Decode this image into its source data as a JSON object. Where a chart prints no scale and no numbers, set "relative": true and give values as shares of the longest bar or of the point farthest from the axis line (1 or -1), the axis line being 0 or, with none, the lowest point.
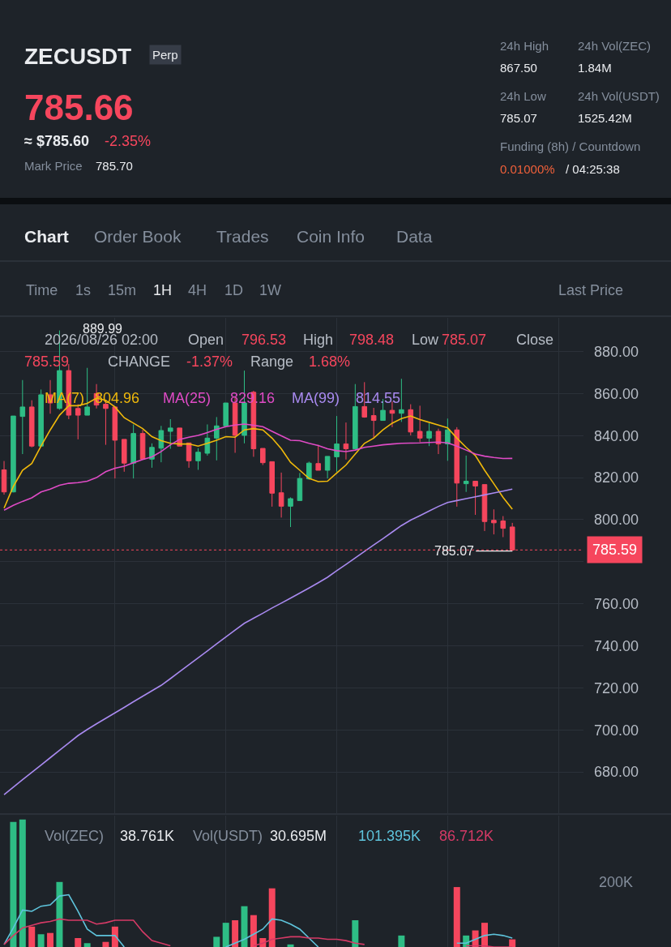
{
  "chart_data": [
    {
      "type": "candlestick",
      "title": "ZECUSDT",
      "annotations": [
        "Perp",
        "785.66",
        "≈ $785.60",
        "-2.35%",
        "Mark Price",
        "785.70",
        "24h High",
        "867.50",
        "24h Low",
        "785.07",
        "24h Vol(ZEC)",
        "1.84M",
        "24h Vol(USDT)",
        "1525.42M",
        "Funding (8h) / Countdown",
        "0.01000%",
        "/ 04:25:38",
        "Chart",
        "Order Book",
        "Trades",
        "Coin Info",
        "Data",
        "Time",
        "1s",
        "15m",
        "1H",
        "4H",
        "1D",
        "1W",
        "Last Price",
        "2026/08/26 02:00",
        "Open",
        "796.53",
        "High",
        "798.48",
        "Low",
        "785.07",
        "Close",
        "785.59",
        "CHANGE",
        "-1.37%",
        "Range",
        "1.68%",
        "889.99",
        {
          "text": "785.07",
          "y": 785.07
        },
        "804.96",
        "829.16",
        "814.55"
      ],
      "categories": [
        null,
        null,
        null,
        null,
        null,
        null,
        null,
        null,
        null,
        null,
        null,
        null,
        null,
        null,
        null,
        null,
        null,
        null,
        null,
        null,
        null,
        null,
        null,
        null,
        null,
        null,
        null,
        null,
        null,
        null,
        null,
        null,
        null,
        null,
        null,
        null,
        null,
        null,
        null,
        null,
        null,
        null,
        null,
        null,
        null,
        null,
        null,
        null,
        null,
        null,
        null,
        null,
        null,
        null,
        null,
        null
      ],
      "ohlc": [
        [
          823.7,
          827.9,
          811.9,
          813.2
        ],
        [
          813.2,
          849.3,
          813.0,
          849.3
        ],
        [
          849.1,
          866.4,
          831.2,
          853.6
        ],
        [
          853.6,
          856.8,
          834.4,
          835.0
        ],
        [
          835.0,
          861.9,
          835.0,
          859.4
        ],
        [
          859.4,
          866.4,
          850.4,
          855.5
        ],
        [
          852.9,
          889.99,
          852.3,
          870.9
        ],
        [
          870.9,
          874.0,
          847.8,
          849.7
        ],
        [
          852.9,
          854.9,
          838.2,
          849.7
        ],
        [
          849.7,
          872.2,
          849.7,
          853.6
        ],
        [
          860.0,
          864.5,
          852.9,
          854.5
        ],
        [
          854.9,
          856.8,
          835.6,
          852.9
        ],
        [
          853.6,
          853.6,
          819.6,
          837.8
        ],
        [
          838.2,
          838.2,
          822.8,
          826.9
        ],
        [
          826.9,
          845.3,
          819.6,
          841.0
        ],
        [
          841.0,
          842.7,
          828.6,
          828.8
        ],
        [
          828.8,
          836.3,
          824.7,
          834.4
        ],
        [
          834.0,
          844.6,
          827.3,
          842.4
        ],
        [
          842.0,
          847.8,
          833.7,
          843.6
        ],
        [
          843.6,
          843.6,
          835.0,
          835.0
        ],
        [
          836.5,
          836.5,
          824.7,
          828.0
        ],
        [
          828.0,
          834.0,
          823.7,
          832.1
        ],
        [
          831.6,
          845.3,
          830.5,
          838.8
        ],
        [
          838.8,
          848.8,
          828.2,
          844.6
        ],
        [
          844.6,
          855.5,
          844.6,
          855.5
        ],
        [
          855.5,
          858.1,
          831.8,
          840.1
        ],
        [
          840.1,
          870.9,
          836.3,
          855.5
        ],
        [
          860.6,
          861.3,
          829.9,
          833.7
        ],
        [
          833.9,
          833.9,
          826.0,
          827.1
        ],
        [
          827.6,
          827.6,
          806.2,
          812.6
        ],
        [
          812.8,
          822.4,
          801.0,
          806.4
        ],
        [
          806.4,
          810.6,
          796.5,
          810.0
        ],
        [
          809.1,
          822.2,
          809.1,
          819.6
        ],
        [
          819.4,
          827.6,
          819.0,
          826.9
        ],
        [
          826.7,
          835.6,
          823.5,
          823.5
        ],
        [
          823.5,
          830.1,
          819.6,
          830.1
        ],
        [
          829.9,
          849.3,
          822.8,
          836.0
        ],
        [
          836.0,
          846.2,
          828.6,
          833.7
        ],
        [
          833.7,
          864.5,
          833.7,
          853.8
        ],
        [
          853.8,
          865.4,
          848.5,
          848.8
        ],
        [
          849.5,
          853.2,
          838.8,
          847.2
        ],
        [
          847.2,
          857.4,
          847.2,
          852.0
        ],
        [
          852.0,
          856.2,
          844.0,
          850.6
        ],
        [
          850.6,
          867.0,
          846.5,
          852.3
        ],
        [
          852.3,
          854.9,
          840.1,
          841.7
        ],
        [
          842.0,
          854.2,
          836.9,
          838.8
        ],
        [
          838.8,
          845.9,
          835.0,
          842.0
        ],
        [
          842.0,
          843.3,
          831.2,
          836.0
        ],
        [
          836.0,
          848.1,
          828.0,
          842.7
        ],
        [
          842.7,
          844.0,
          806.2,
          817.4
        ],
        [
          817.1,
          830.5,
          813.2,
          818.3
        ],
        [
          818.3,
          818.3,
          802.3,
          816.0
        ],
        [
          816.7,
          816.7,
          794.6,
          799.1
        ],
        [
          799.7,
          804.9,
          793.0,
          798.5
        ],
        [
          799.4,
          801.7,
          791.7,
          795.9
        ],
        [
          796.53,
          798.48,
          785.07,
          785.59
        ]
      ],
      "colors": [
        "#f6465d",
        "#2ebd85",
        "#2ebd85",
        "#f6465d",
        "#2ebd85",
        "#f6465d",
        "#2ebd85",
        "#f6465d",
        "#f6465d",
        "#2ebd85",
        "#f6465d",
        "#f6465d",
        "#f6465d",
        "#f6465d",
        "#2ebd85",
        "#f6465d",
        "#2ebd85",
        "#2ebd85",
        "#2ebd85",
        "#f6465d",
        "#f6465d",
        "#2ebd85",
        "#2ebd85",
        "#2ebd85",
        "#2ebd85",
        "#f6465d",
        "#2ebd85",
        "#f6465d",
        "#f6465d",
        "#f6465d",
        "#f6465d",
        "#2ebd85",
        "#2ebd85",
        "#2ebd85",
        "#f6465d",
        "#2ebd85",
        "#2ebd85",
        "#f6465d",
        "#2ebd85",
        "#f6465d",
        "#f6465d",
        "#2ebd85",
        "#f6465d",
        "#2ebd85",
        "#f6465d",
        "#f6465d",
        "#2ebd85",
        "#f6465d",
        "#2ebd85",
        "#f6465d",
        "#2ebd85",
        "#f6465d",
        "#f6465d",
        "#f6465d",
        "#f6465d",
        "#f6465d"
      ],
      "series": [
        {
          "type": "line",
          "name": "MA(7)",
          "color": "#f0b90b",
          "values": [
            805.5,
            815.8,
            823.5,
            826.7,
            835.0,
            842.7,
            849.7,
            854.2,
            854.2,
            855.3,
            857.8,
            856.8,
            853.6,
            848.5,
            845.9,
            843.3,
            839.5,
            837.6,
            836.3,
            836.0,
            836.0,
            835.0,
            836.3,
            837.8,
            839.5,
            839.2,
            842.7,
            843.3,
            842.7,
            838.8,
            833.7,
            827.3,
            823.5,
            819.6,
            818.1,
            818.3,
            822.2,
            826.0,
            831.2,
            836.3,
            838.8,
            842.7,
            845.9,
            848.1,
            849.3,
            847.6,
            846.3,
            845.0,
            843.7,
            838.8,
            834.4,
            830.5,
            823.5,
            817.1,
            810.6,
            804.96
          ]
        },
        {
          "type": "line",
          "name": "MA(25)",
          "color": "#e04bc6",
          "values": [
            804.5,
            806.8,
            808.7,
            810.4,
            813.2,
            814.5,
            816.4,
            817.3,
            817.6,
            818.3,
            820.0,
            822.8,
            824.5,
            825.4,
            827.1,
            828.6,
            829.9,
            832.4,
            835.6,
            838.2,
            839.2,
            840.1,
            841.4,
            843.0,
            844.2,
            845.0,
            845.5,
            844.9,
            844.2,
            842.0,
            839.9,
            837.8,
            837.6,
            836.3,
            835.3,
            833.7,
            832.8,
            832.4,
            833.1,
            834.4,
            835.0,
            835.6,
            836.0,
            836.3,
            836.4,
            836.5,
            836.7,
            836.9,
            836.5,
            835.0,
            833.1,
            831.2,
            830.2,
            829.6,
            829.1,
            829.16
          ]
        },
        {
          "type": "line",
          "name": "MA(99)",
          "color": "#a98af0",
          "values": [
            669.2,
            672.8,
            676.3,
            679.8,
            683.3,
            686.8,
            690.3,
            693.8,
            697.3,
            700.2,
            702.9,
            705.5,
            708.1,
            710.7,
            713.4,
            716.0,
            718.6,
            721.2,
            724.4,
            727.7,
            731.0,
            734.3,
            737.6,
            740.9,
            744.2,
            747.5,
            750.7,
            753.1,
            755.5,
            758.0,
            760.3,
            762.7,
            765.1,
            767.5,
            770.0,
            772.6,
            775.7,
            778.7,
            781.8,
            784.9,
            788.0,
            791.0,
            794.1,
            797.2,
            799.8,
            801.9,
            804.1,
            806.3,
            808.2,
            809.1,
            810.0,
            810.9,
            811.8,
            812.7,
            813.6,
            814.55
          ]
        }
      ],
      "ylim": [
        660,
        896
      ],
      "yticks": [
        {
          "value": 680,
          "label": "680.00"
        },
        {
          "value": 700,
          "label": "700.00"
        },
        {
          "value": 720,
          "label": "720.00"
        },
        {
          "value": 740,
          "label": "740.00"
        },
        {
          "value": 760,
          "label": "760.00"
        },
        {
          "value": 780,
          "label": null
        },
        {
          "value": 800,
          "label": "800.00"
        },
        {
          "value": 820,
          "label": "820.00"
        },
        {
          "value": 840,
          "label": "840.00"
        },
        {
          "value": 860,
          "label": "860.00"
        },
        {
          "value": 880,
          "label": "880.00"
        }
      ],
      "ref_lines": [
        {
          "axis": "y",
          "value": 785.59,
          "label": "785.59",
          "color": "#f6465d",
          "line_style": "dotted"
        }
      ],
      "grid": true,
      "legend": "top",
      "tick_labels": "y"
    },
    {
      "type": "bar",
      "relative": true,
      "grid": "x",
      "tick_labels": false,
      "annotations": [
        "Vol(ZEC)",
        "38.761K",
        "Vol(USDT)",
        "30.695M",
        "101.395K",
        "86.712K",
        "200K"
      ],
      "categories": [
        null,
        null,
        null,
        null,
        null,
        null,
        null,
        null,
        null,
        null,
        null,
        null,
        null,
        null,
        null,
        null,
        null,
        null,
        null,
        null,
        null,
        null,
        null,
        null,
        null,
        null,
        null,
        null,
        null,
        null,
        null,
        null,
        null,
        null,
        null,
        null,
        null,
        null,
        null,
        null,
        null,
        null,
        null,
        null,
        null,
        null,
        null,
        null,
        null,
        null,
        null,
        null,
        null,
        null,
        null,
        null
      ],
      "series": [
        {
          "type": "bar",
          "colors": [
            "#f6465d",
            "#2ebd85",
            "#2ebd85",
            "#f6465d",
            "#2ebd85",
            "#f6465d",
            "#2ebd85",
            "#f6465d",
            "#f6465d",
            "#2ebd85",
            "#f6465d",
            "#f6465d",
            "#f6465d",
            "#f6465d",
            "#2ebd85",
            "#f6465d",
            "#2ebd85",
            "#2ebd85",
            "#2ebd85",
            "#f6465d",
            "#f6465d",
            "#2ebd85",
            "#2ebd85",
            "#2ebd85",
            "#2ebd85",
            "#f6465d",
            "#2ebd85",
            "#f6465d",
            "#f6465d",
            "#f6465d",
            "#f6465d",
            "#2ebd85",
            "#2ebd85",
            "#2ebd85",
            "#f6465d",
            "#2ebd85",
            "#2ebd85",
            "#f6465d",
            "#2ebd85",
            "#f6465d",
            "#f6465d",
            "#2ebd85",
            "#f6465d",
            "#2ebd85",
            "#f6465d",
            "#f6465d",
            "#2ebd85",
            "#f6465d",
            "#2ebd85",
            "#f6465d",
            "#2ebd85",
            "#f6465d",
            "#f6465d",
            "#f6465d",
            "#f6465d",
            "#f6465d"
          ],
          "values": [
            null,
            0.98,
            1.0,
            0.16,
            0.1,
            0.11,
            0.51,
            null,
            0.07,
            0.03,
            null,
            0.04,
            0.16,
            null,
            null,
            null,
            null,
            null,
            null,
            null,
            null,
            null,
            null,
            0.08,
            0.19,
            0.21,
            0.32,
            0.25,
            0.07,
            0.46,
            null,
            0.02,
            null,
            null,
            null,
            null,
            null,
            null,
            0.21,
            null,
            null,
            null,
            null,
            0.09,
            null,
            null,
            null,
            null,
            null,
            0.47,
            0.09,
            0.13,
            0.19,
            null,
            null,
            0.06
          ]
        },
        {
          "type": "line",
          "color": "#5ec4dc",
          "values": [
            0.02,
            0.15,
            0.29,
            0.28,
            0.32,
            0.33,
            0.4,
            0.41,
            0.28,
            0.14,
            0.09,
            0.09,
            0.09,
            0.0,
            null,
            null,
            null,
            null,
            null,
            null,
            null,
            null,
            null,
            null,
            0.0,
            0.03,
            0.06,
            0.1,
            0.14,
            0.22,
            0.21,
            0.18,
            0.14,
            0.07,
            0.0,
            null,
            null,
            null,
            null,
            null,
            null,
            null,
            null,
            null,
            null,
            null,
            null,
            null,
            null,
            0.03,
            0.03,
            0.06,
            0.09,
            0.1,
            0.09,
            0.07
          ]
        },
        {
          "type": "line",
          "color": "#d63a66",
          "values": [
            0.02,
            0.09,
            0.15,
            0.17,
            0.19,
            0.2,
            0.22,
            0.21,
            0.21,
            0.21,
            0.18,
            0.19,
            0.21,
            0.21,
            0.21,
            0.12,
            0.05,
            0.03,
            0.01,
            null,
            null,
            null,
            null,
            null,
            null,
            null,
            null,
            0.01,
            0.03,
            0.06,
            0.07,
            0.08,
            0.08,
            0.07,
            0.07,
            0.06,
            0.06,
            0.05,
            0.03,
            0.02,
            null,
            null,
            null,
            null,
            null,
            null,
            null,
            null,
            null,
            null,
            0.01,
            0.01,
            0.01,
            0.0,
            0.0,
            0.0
          ]
        }
      ]
    }
  ]
}
